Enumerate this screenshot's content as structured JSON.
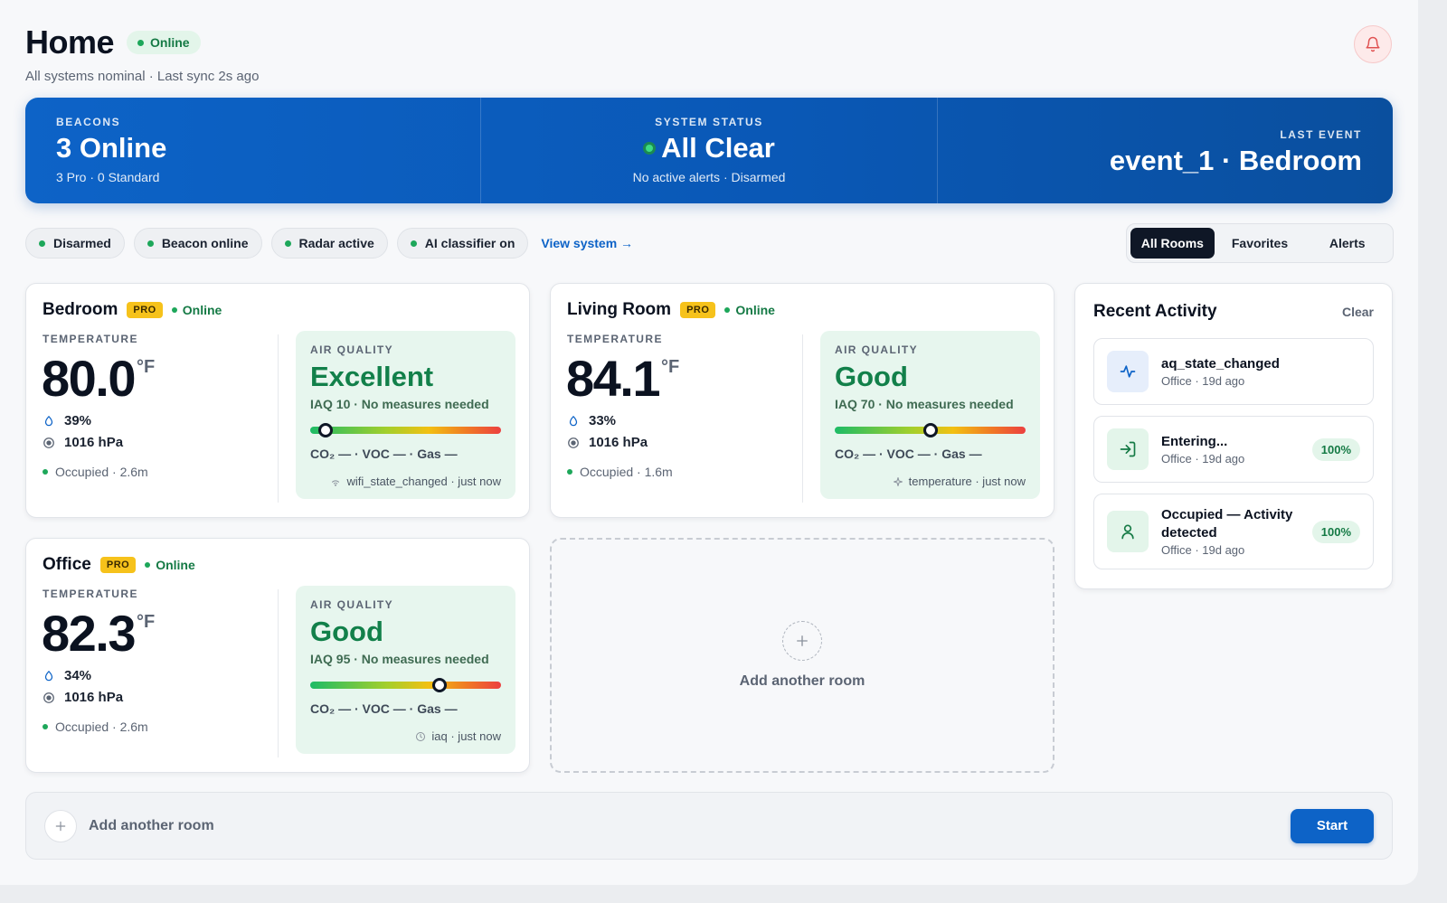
{
  "header": {
    "title": "Home",
    "status": "Online",
    "subtitle": "All systems nominal · Last sync 2s ago"
  },
  "banner": {
    "beacons": {
      "label": "BEACONS",
      "value": "3 Online",
      "sub": "3 Pro · 0 Standard"
    },
    "system": {
      "label": "SYSTEM STATUS",
      "value": "All Clear",
      "sub": "No active alerts · Disarmed"
    },
    "last_event": {
      "label": "LAST EVENT",
      "value": "event_1 · Bedroom"
    }
  },
  "chips": [
    "Disarmed",
    "Beacon online",
    "Radar active",
    "AI classifier on"
  ],
  "view_system": "View system →",
  "filter_tabs": [
    "All Rooms",
    "Favorites",
    "Alerts"
  ],
  "active_tab": "All Rooms",
  "rooms": [
    {
      "name": "Bedroom",
      "badge": "PRO",
      "status": "Online",
      "temp_label": "TEMPERATURE",
      "temp": "80.0",
      "unit": "°F",
      "humidity": "39%",
      "pressure": "1016 hPa",
      "occupancy": "Occupied · 2.6m",
      "aq_label": "AIR QUALITY",
      "aq_state": "Excellent",
      "aq_desc": "IAQ 10 · No measures needed",
      "aq_level": 0.08,
      "gas": "CO₂ — · VOC — · Gas —",
      "footer": "wifi_state_changed · just now",
      "footer_icon": "wifi-icon"
    },
    {
      "name": "Living Room",
      "badge": "PRO",
      "status": "Online",
      "temp_label": "TEMPERATURE",
      "temp": "84.1",
      "unit": "°F",
      "humidity": "33%",
      "pressure": "1016 hPa",
      "occupancy": "Occupied · 1.6m",
      "aq_label": "AIR QUALITY",
      "aq_state": "Good",
      "aq_desc": "IAQ 70 · No measures needed",
      "aq_level": 0.5,
      "gas": "CO₂ — · VOC — · Gas —",
      "footer": "temperature · just now",
      "footer_icon": "sparkle-icon"
    },
    {
      "name": "Office",
      "badge": "PRO",
      "status": "Online",
      "temp_label": "TEMPERATURE",
      "temp": "82.3",
      "unit": "°F",
      "humidity": "34%",
      "pressure": "1016 hPa",
      "occupancy": "Occupied · 2.6m",
      "aq_label": "AIR QUALITY",
      "aq_state": "Good",
      "aq_desc": "IAQ 95 · No measures needed",
      "aq_level": 0.68,
      "gas": "CO₂ — · VOC — · Gas —",
      "footer": "iaq · just now",
      "footer_icon": "clock-icon"
    }
  ],
  "add_room_card": "Add another room",
  "activity": {
    "title": "Recent Activity",
    "clear": "Clear",
    "items": [
      {
        "name": "aq_state_changed",
        "meta": "Office · 19d ago",
        "badge": "",
        "icon": "pulse-icon"
      },
      {
        "name": "Entering...",
        "meta": "Office · 19d ago",
        "badge": "100%",
        "icon": "enter-icon"
      },
      {
        "name": "Occupied — Activity detected",
        "meta": "Office · 19d ago",
        "badge": "100%",
        "icon": "person-icon"
      }
    ]
  },
  "bottom": {
    "placeholder": "Add another room",
    "button": "Start"
  },
  "colors": {
    "accent": "#0d63c7",
    "success": "#1da75a",
    "pro": "#f6c21b",
    "dark": "#0f1726"
  }
}
